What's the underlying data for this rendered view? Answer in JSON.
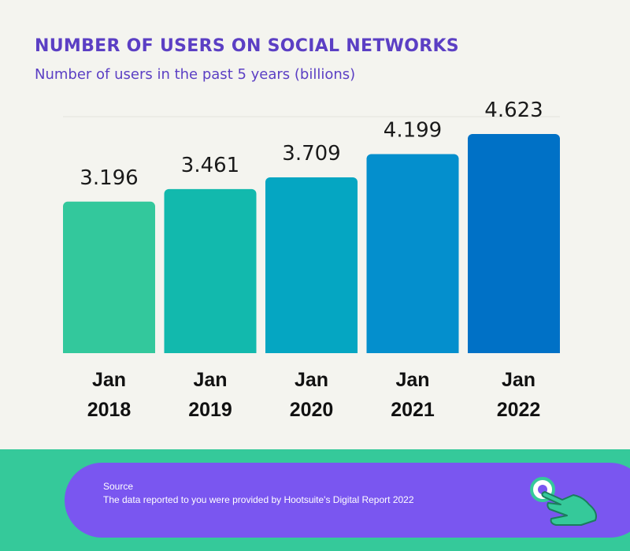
{
  "header": {
    "title": "NUMBER OF USERS ON SOCIAL NETWORKS",
    "subtitle": "Number of users in the past 5 years (billions)"
  },
  "chart_data": {
    "type": "bar",
    "categories": [
      [
        "Jan",
        "2018"
      ],
      [
        "Jan",
        "2019"
      ],
      [
        "Jan",
        "2020"
      ],
      [
        "Jan",
        "2021"
      ],
      [
        "Jan",
        "2022"
      ]
    ],
    "values": [
      3.196,
      3.461,
      3.709,
      4.199,
      4.623
    ],
    "value_labels": [
      "3.196",
      "3.461",
      "3.709",
      "4.199",
      "4.623"
    ],
    "bar_colors": [
      "#33c89c",
      "#12b9ad",
      "#05a6c2",
      "#048fcd",
      "#0071c6"
    ],
    "title": "NUMBER OF USERS ON SOCIAL NETWORKS",
    "ylabel": "",
    "ylim": [
      0,
      4.623
    ],
    "grid": false,
    "legend": "none"
  },
  "footer": {
    "source_label": "Source",
    "source_text": "The data reported to you were provided by Hootsuite's Digital Report 2022",
    "icon": "pointing-hand-icon"
  },
  "colors": {
    "background": "#f4f4ef",
    "title": "#5b3fc4",
    "footer_band": "#35c99a",
    "footer_pill": "#7a56f0"
  }
}
